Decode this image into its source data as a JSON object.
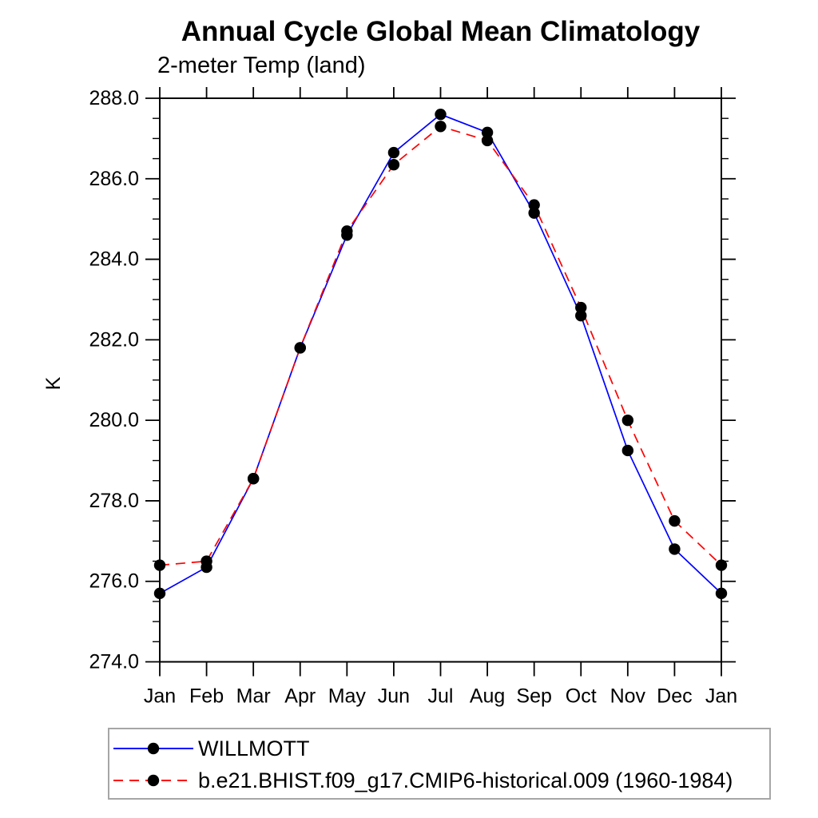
{
  "title": "Annual Cycle Global Mean Climatology",
  "subtitle": "2-meter Temp (land)",
  "colors": {
    "background": "#ffffff",
    "axis": "#000000",
    "text": "#000000",
    "marker": "#000000",
    "legend_border": "#a6a6a6",
    "willmott_line": "#0000ff",
    "model_line": "#ff0000"
  },
  "chart_data": {
    "type": "line",
    "title": "Annual Cycle Global Mean Climatology",
    "subtitle": "2-meter Temp (land)",
    "xlabel": "",
    "ylabel": "K",
    "x": [
      "Jan",
      "Feb",
      "Mar",
      "Apr",
      "May",
      "Jun",
      "Jul",
      "Aug",
      "Sep",
      "Oct",
      "Nov",
      "Dec",
      "Jan"
    ],
    "ylim": [
      274.0,
      288.0
    ],
    "y_major_tick_step": 2.0,
    "y_minor_tick_step": 0.5,
    "y_tick_labels": [
      "274.0",
      "276.0",
      "278.0",
      "280.0",
      "282.0",
      "284.0",
      "286.0",
      "288.0"
    ],
    "grid": false,
    "legend_position": "bottom-left",
    "series": [
      {
        "name": "WILLMOTT",
        "color": "#0000ff",
        "line_style": "solid",
        "marker": "filled-circle",
        "marker_color": "#000000",
        "values": [
          275.7,
          276.35,
          278.55,
          281.8,
          284.6,
          286.65,
          287.6,
          287.15,
          285.15,
          282.6,
          279.25,
          276.8,
          275.7
        ]
      },
      {
        "name": "b.e21.BHIST.f09_g17.CMIP6-historical.009 (1960-1984)",
        "color": "#ff0000",
        "line_style": "dashed",
        "marker": "filled-circle",
        "marker_color": "#000000",
        "values": [
          276.4,
          276.5,
          278.55,
          281.8,
          284.7,
          286.35,
          287.3,
          286.95,
          285.35,
          282.8,
          280.0,
          277.5,
          276.4
        ]
      }
    ]
  }
}
